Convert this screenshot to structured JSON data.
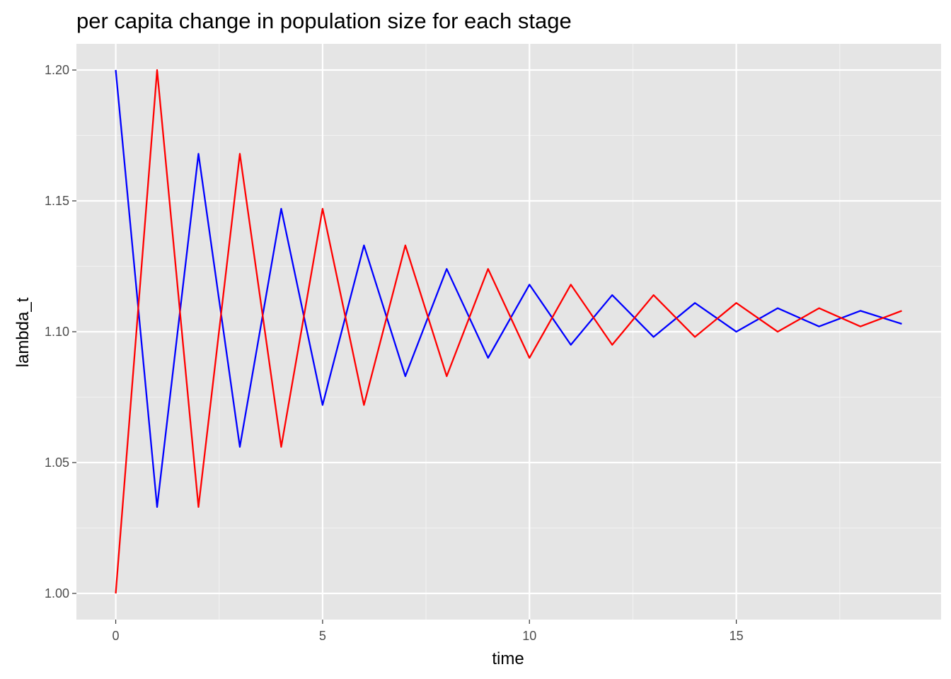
{
  "chart_data": {
    "type": "line",
    "title": "per capita change in population size for each stage",
    "xlabel": "time",
    "ylabel": "lambda_t",
    "xlim": [
      -0.95,
      19.95
    ],
    "ylim": [
      0.99,
      1.21
    ],
    "x_ticks": [
      0,
      5,
      10,
      15
    ],
    "x_tick_labels": [
      "0",
      "5",
      "10",
      "15"
    ],
    "y_ticks": [
      1.0,
      1.05,
      1.1,
      1.15,
      1.2
    ],
    "y_tick_labels": [
      "1.00",
      "1.05",
      "1.10",
      "1.15",
      "1.20"
    ],
    "grid": true,
    "legend": "none",
    "x": [
      0,
      1,
      2,
      3,
      4,
      5,
      6,
      7,
      8,
      9,
      10,
      11,
      12,
      13,
      14,
      15,
      16,
      17,
      18,
      19
    ],
    "series": [
      {
        "color": "#0000ff",
        "values": [
          1.2,
          1.033,
          1.168,
          1.056,
          1.147,
          1.072,
          1.133,
          1.083,
          1.124,
          1.09,
          1.118,
          1.095,
          1.114,
          1.098,
          1.111,
          1.1,
          1.109,
          1.102,
          1.108,
          1.103
        ]
      },
      {
        "color": "#ff0000",
        "values": [
          1.0,
          1.2,
          1.033,
          1.168,
          1.056,
          1.147,
          1.072,
          1.133,
          1.083,
          1.124,
          1.09,
          1.118,
          1.095,
          1.114,
          1.098,
          1.111,
          1.1,
          1.109,
          1.102,
          1.108
        ]
      }
    ]
  }
}
